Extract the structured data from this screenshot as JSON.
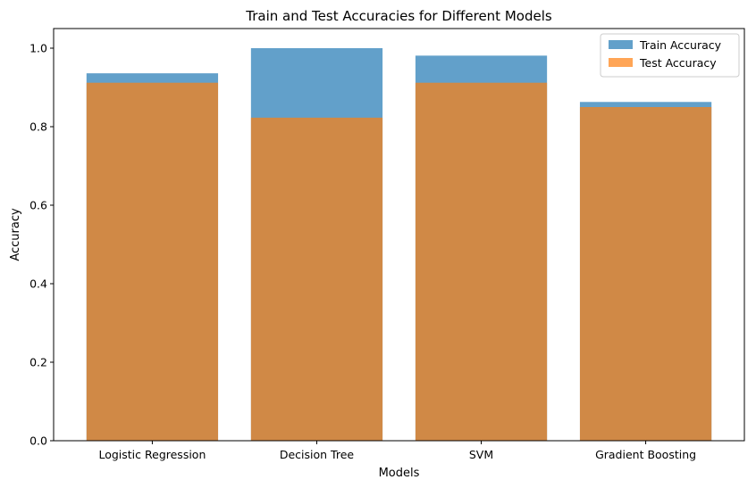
{
  "chart_data": {
    "type": "bar",
    "title": "Train and Test Accuracies for Different Models",
    "xlabel": "Models",
    "ylabel": "Accuracy",
    "categories": [
      "Logistic Regression",
      "Decision Tree",
      "SVM",
      "Gradient Boosting"
    ],
    "series": [
      {
        "name": "Train Accuracy",
        "values": [
          0.936,
          1.0,
          0.981,
          0.863
        ],
        "color": "#1f77b4",
        "opacity": 0.7
      },
      {
        "name": "Test Accuracy",
        "values": [
          0.912,
          0.823,
          0.912,
          0.85
        ],
        "color": "#ff7f0e",
        "opacity": 0.7
      }
    ],
    "ylim": [
      0,
      1.05
    ],
    "yticks": [
      0.0,
      0.2,
      0.4,
      0.6,
      0.8,
      1.0
    ],
    "ytick_labels": [
      "0.0",
      "0.2",
      "0.4",
      "0.6",
      "0.8",
      "1.0"
    ],
    "grid": false,
    "legend_position": "top-right"
  }
}
